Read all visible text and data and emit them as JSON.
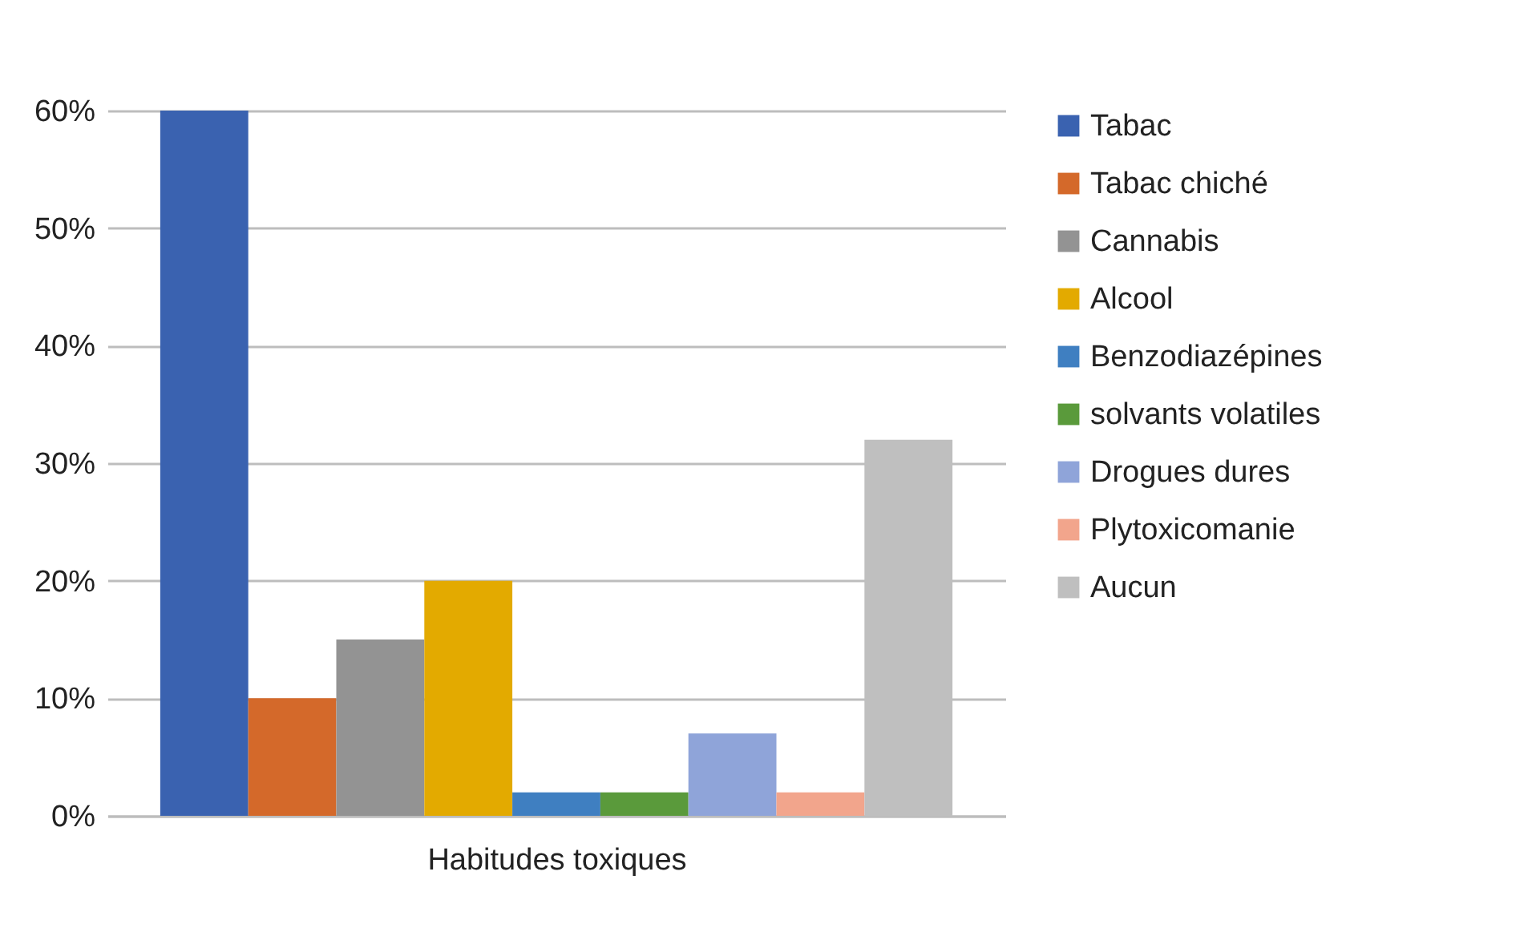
{
  "chart_data": {
    "type": "bar",
    "xlabel": "Habitudes toxiques",
    "categories": [
      null
    ],
    "series": [
      {
        "name": "Tabac",
        "color": "#3a62b0",
        "values": [
          60
        ]
      },
      {
        "name": "Tabac chiché",
        "color": "#d4692a",
        "values": [
          10
        ]
      },
      {
        "name": "Cannabis",
        "color": "#939393",
        "values": [
          15
        ]
      },
      {
        "name": "Alcool",
        "color": "#e3aa00",
        "values": [
          20
        ]
      },
      {
        "name": "Benzodiazépines",
        "color": "#3f7fc1",
        "values": [
          2
        ]
      },
      {
        "name": "solvants volatiles",
        "color": "#5a9a3b",
        "values": [
          2
        ]
      },
      {
        "name": "Drogues dures",
        "color": "#8fa4d9",
        "values": [
          7
        ]
      },
      {
        "name": "Plytoxicomanie",
        "color": "#f2a58c",
        "values": [
          2
        ]
      },
      {
        "name": "Aucun",
        "color": "#bfbfbf",
        "values": [
          32
        ]
      }
    ],
    "ylim": [
      0,
      60
    ],
    "yticks": [
      {
        "value": 0,
        "label": "0%"
      },
      {
        "value": 10,
        "label": "10%"
      },
      {
        "value": 20,
        "label": "20%"
      },
      {
        "value": 30,
        "label": "30%"
      },
      {
        "value": 40,
        "label": "40%"
      },
      {
        "value": 50,
        "label": "50%"
      },
      {
        "value": 60,
        "label": "60%"
      }
    ],
    "grid": "y",
    "legend": "right"
  }
}
